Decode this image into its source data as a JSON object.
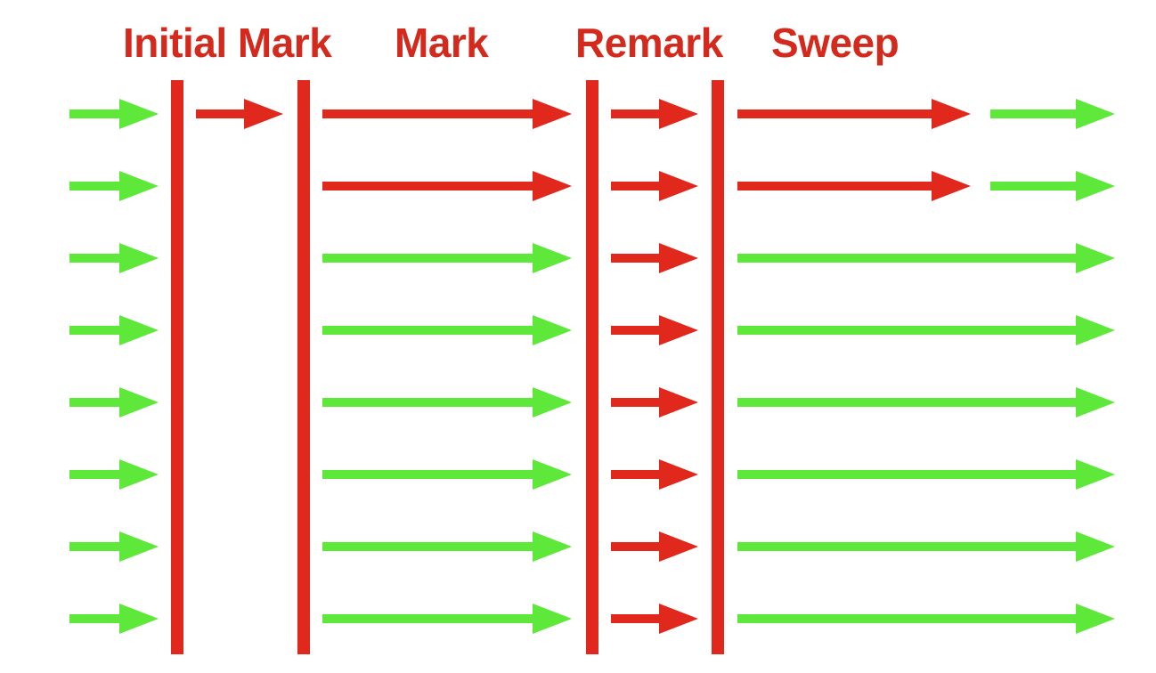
{
  "phases": [
    {
      "key": "initial-mark",
      "label": "Initial Mark"
    },
    {
      "key": "mark",
      "label": "Mark"
    },
    {
      "key": "remark",
      "label": "Remark"
    },
    {
      "key": "sweep",
      "label": "Sweep"
    }
  ],
  "colors": {
    "background": "#ffffff",
    "label": "#d42a1e",
    "barrier": "#e0281c",
    "gc_thread": "#e0281c",
    "app_thread": "#5ee83a"
  },
  "legend_semantics": {
    "red_arrow": "gc-thread",
    "green_arrow": "application-thread"
  },
  "threads": [
    [
      "app",
      "gc",
      "gc",
      "gc",
      "gc",
      "app"
    ],
    [
      "app",
      "none",
      "gc",
      "gc",
      "gc",
      "app"
    ],
    [
      "app",
      "none",
      "app",
      "gc",
      "app",
      "none"
    ],
    [
      "app",
      "none",
      "app",
      "gc",
      "app",
      "none"
    ],
    [
      "app",
      "none",
      "app",
      "gc",
      "app",
      "none"
    ],
    [
      "app",
      "none",
      "app",
      "gc",
      "app",
      "none"
    ],
    [
      "app",
      "none",
      "app",
      "gc",
      "app",
      "none"
    ],
    [
      "app",
      "none",
      "app",
      "gc",
      "app",
      "none"
    ]
  ]
}
